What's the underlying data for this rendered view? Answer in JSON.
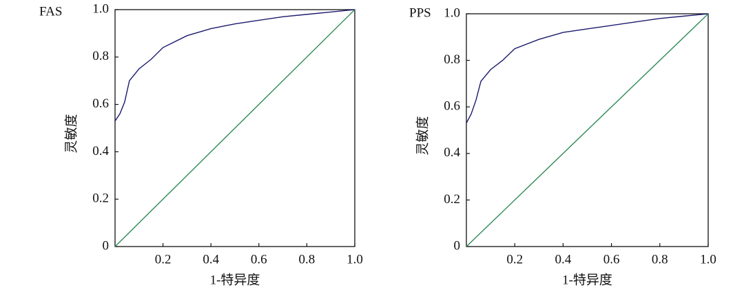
{
  "chart_data": [
    {
      "type": "line",
      "title": "FAS",
      "xlabel": "1-特异度",
      "ylabel": "灵敏度",
      "xlim": [
        0,
        1
      ],
      "ylim": [
        0,
        1
      ],
      "xticks": [
        0.2,
        0.4,
        0.6,
        0.8,
        {
          "value": 1,
          "label": "1.0"
        }
      ],
      "yticks": [
        0,
        0.2,
        0.4,
        0.6,
        0.8,
        {
          "value": 1,
          "label": "1.0"
        }
      ],
      "series": [
        {
          "color": "#1a1a6e",
          "x": [
            0,
            0.02,
            0.04,
            0.06,
            0.1,
            0.15,
            0.2,
            0.3,
            0.4,
            0.5,
            0.6,
            0.7,
            0.8,
            0.9,
            1.0
          ],
          "values": [
            0.53,
            0.56,
            0.61,
            0.7,
            0.75,
            0.79,
            0.84,
            0.89,
            0.92,
            0.94,
            0.955,
            0.97,
            0.98,
            0.99,
            1.0
          ]
        },
        {
          "color": "#2e8b57",
          "x": [
            0,
            1
          ],
          "values": [
            0,
            1
          ]
        }
      ]
    },
    {
      "type": "line",
      "title": "PPS",
      "xlabel": "1-特异度",
      "ylabel": "灵敏度",
      "xlim": [
        0,
        1
      ],
      "ylim": [
        0,
        1
      ],
      "xticks": [
        0.2,
        0.4,
        0.6,
        0.8,
        {
          "value": 1,
          "label": "1.0"
        }
      ],
      "yticks": [
        0,
        0.2,
        0.4,
        0.6,
        0.8,
        {
          "value": 1,
          "label": "1.0"
        }
      ],
      "series": [
        {
          "color": "#1a1a6e",
          "x": [
            0,
            0.02,
            0.04,
            0.06,
            0.1,
            0.15,
            0.2,
            0.3,
            0.4,
            0.5,
            0.6,
            0.7,
            0.8,
            0.9,
            1.0
          ],
          "values": [
            0.53,
            0.57,
            0.63,
            0.71,
            0.76,
            0.8,
            0.85,
            0.89,
            0.92,
            0.935,
            0.95,
            0.965,
            0.98,
            0.99,
            1.0
          ]
        },
        {
          "color": "#2e8b57",
          "x": [
            0,
            1
          ],
          "values": [
            0,
            1
          ]
        }
      ]
    }
  ]
}
